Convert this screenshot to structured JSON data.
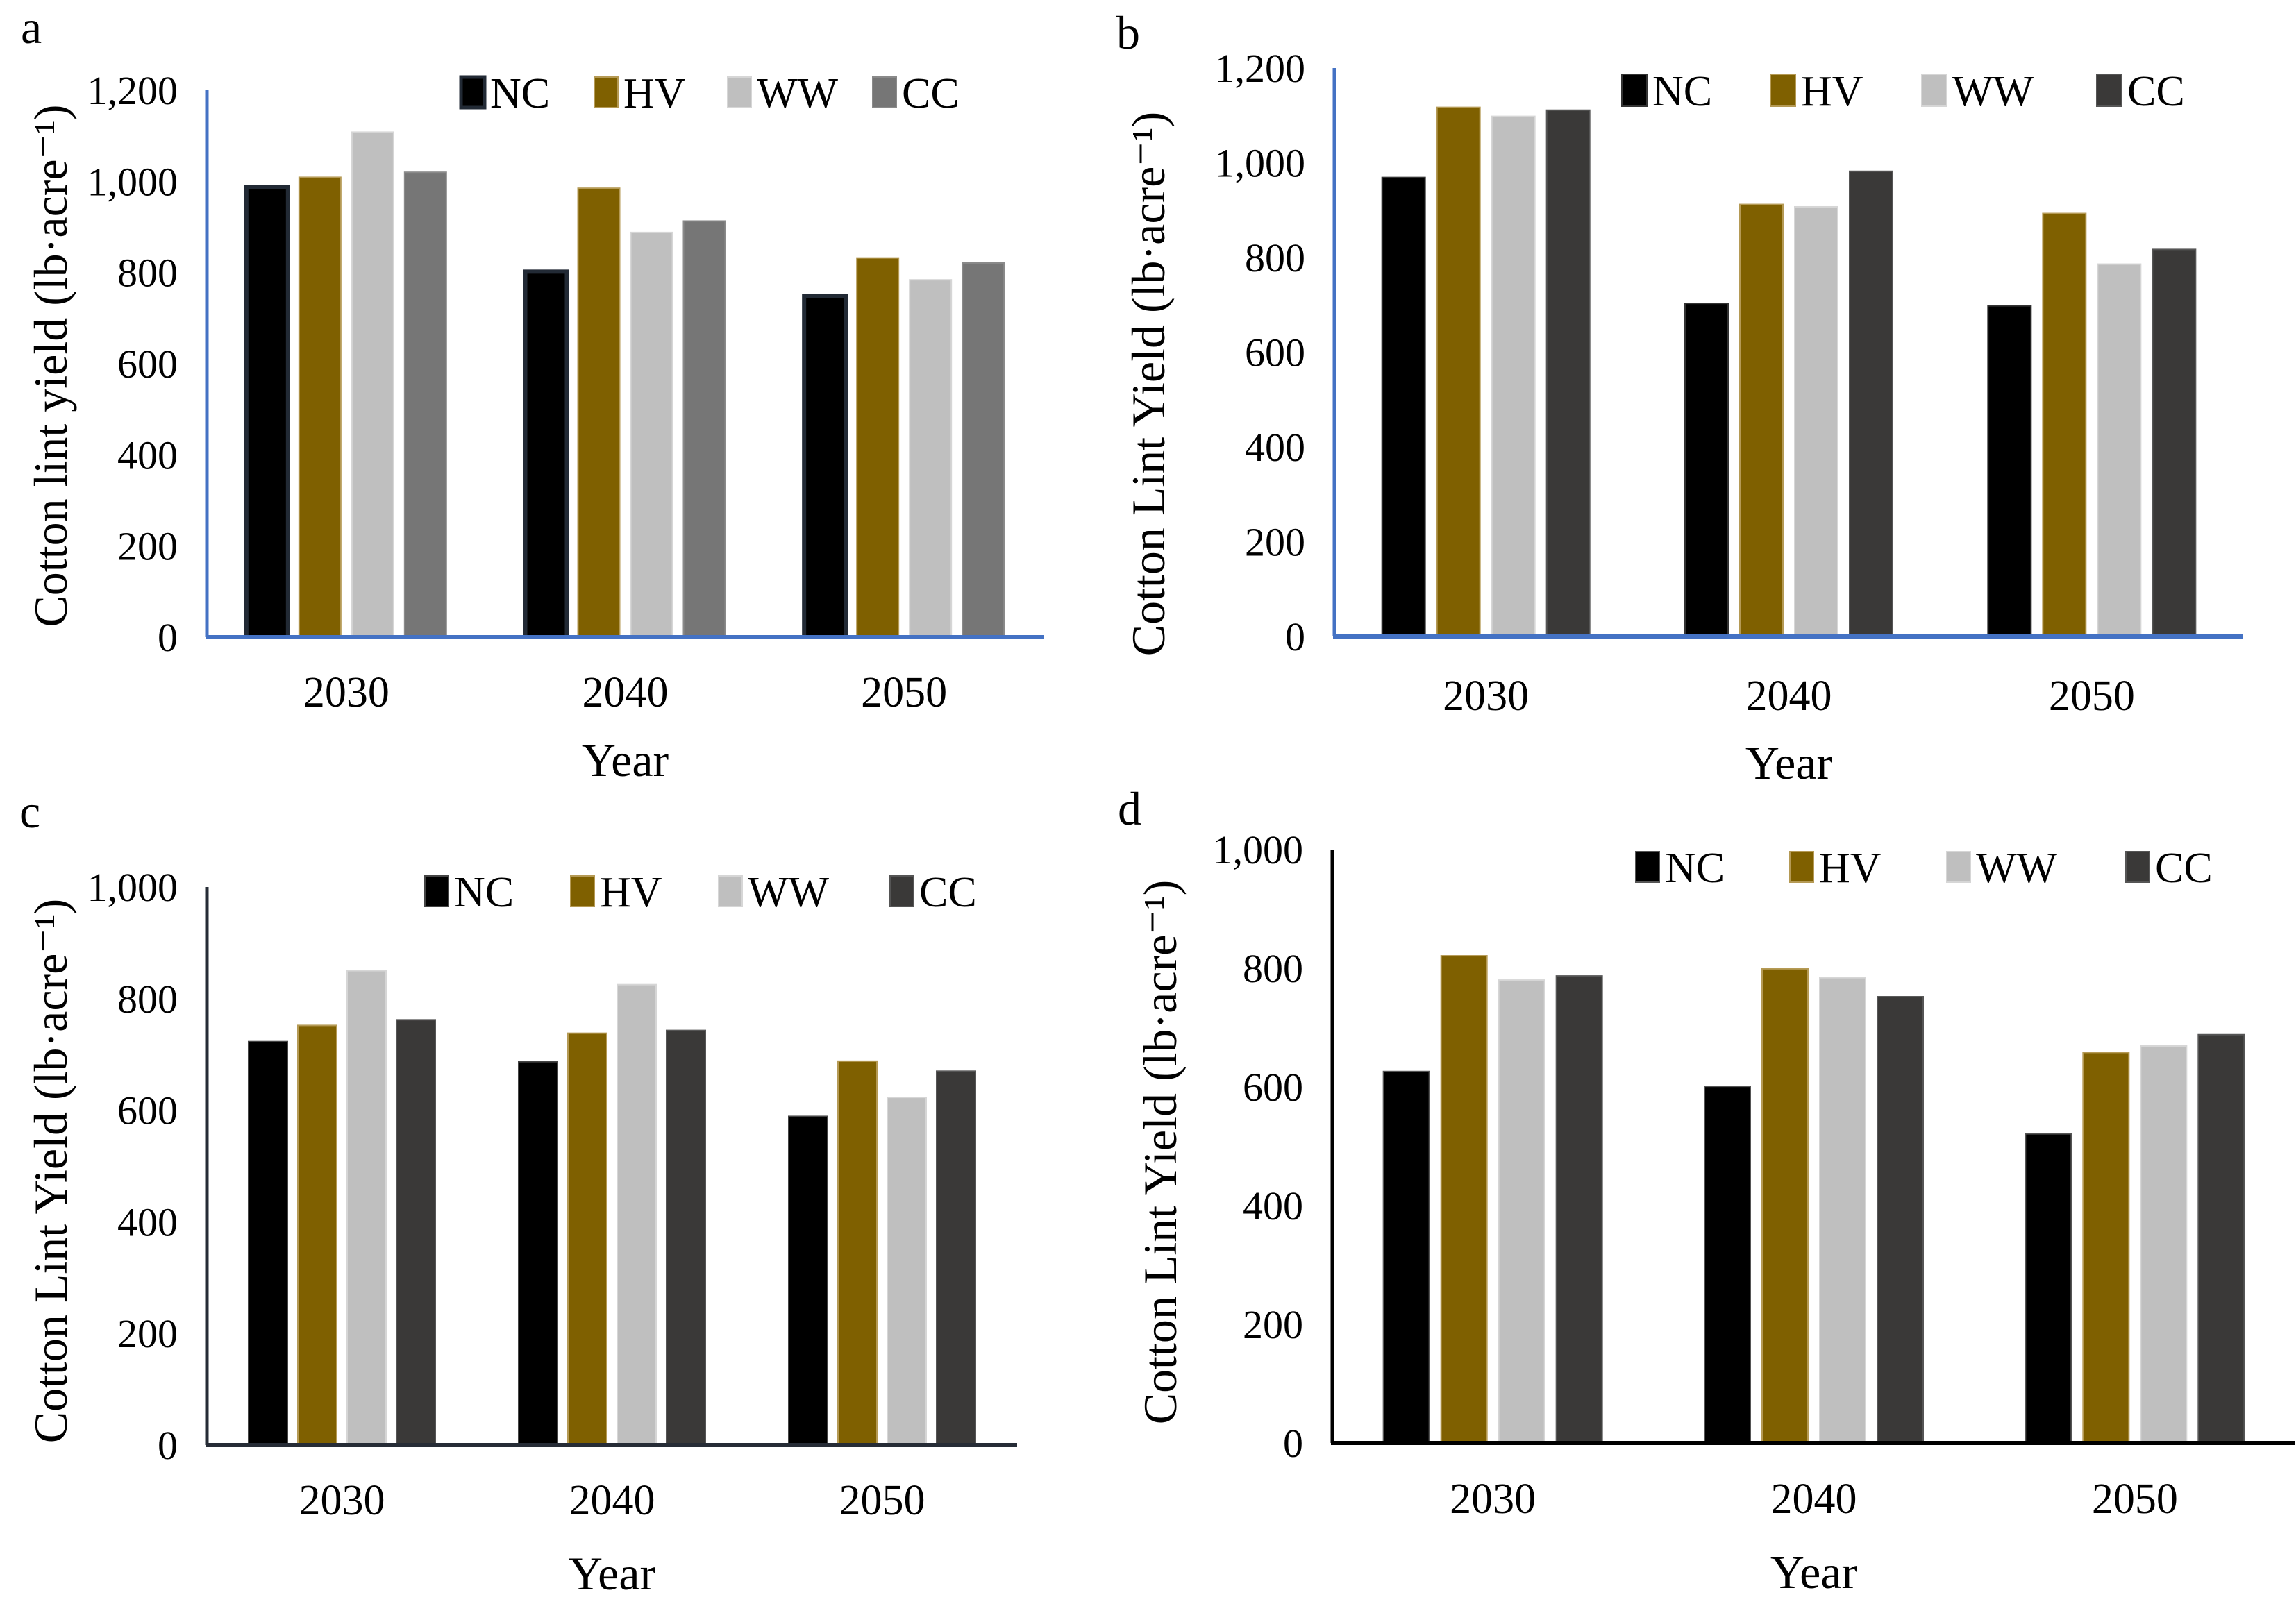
{
  "figure": {
    "panels_count": 4
  },
  "chart_data": [
    {
      "panel": "a",
      "type": "bar",
      "title": "",
      "xlabel": "Year",
      "ylabel": "Cotton lint yield (lb·acre⁻¹)",
      "ylim": [
        0,
        1200
      ],
      "yticks": [
        0,
        200,
        400,
        600,
        800,
        1000,
        1200
      ],
      "ytick_labels": [
        "0",
        "200",
        "400",
        "600",
        "800",
        "1,000",
        "1,200"
      ],
      "categories": [
        "2030",
        "2040",
        "2050"
      ],
      "legend_position": "top-right",
      "grid": false,
      "axis_color": "#4472c4",
      "series": [
        {
          "name": "NC",
          "color": "#000000",
          "edge": "#222a35",
          "values": [
            987,
            802,
            748
          ]
        },
        {
          "name": "HV",
          "color": "#7f6000",
          "edge": "#b59a55",
          "values": [
            1009,
            985,
            832
          ]
        },
        {
          "name": "WW",
          "color": "#bfbfbf",
          "edge": "#d6d6d6",
          "values": [
            1108,
            888,
            784
          ]
        },
        {
          "name": "CC",
          "color": "#767676",
          "edge": "#8a8a8a",
          "values": [
            1020,
            913,
            821
          ]
        }
      ]
    },
    {
      "panel": "b",
      "type": "bar",
      "title": "",
      "xlabel": "Year",
      "ylabel": "Cotton Lint Yield (lb·acre⁻¹)",
      "ylim": [
        0,
        1200
      ],
      "yticks": [
        0,
        200,
        400,
        600,
        800,
        1000,
        1200
      ],
      "ytick_labels": [
        "0",
        "200",
        "400",
        "600",
        "800",
        "1,000",
        "1,200"
      ],
      "categories": [
        "2030",
        "2040",
        "2050"
      ],
      "legend_position": "top-right",
      "grid": false,
      "axis_color": "#4472c4",
      "series": [
        {
          "name": "NC",
          "color": "#000000",
          "edge": "#333333",
          "values": [
            969,
            703,
            698
          ]
        },
        {
          "name": "HV",
          "color": "#7f6000",
          "edge": "#b59a55",
          "values": [
            1117,
            912,
            893
          ]
        },
        {
          "name": "WW",
          "color": "#bfbfbf",
          "edge": "#d6d6d6",
          "values": [
            1098,
            907,
            786
          ]
        },
        {
          "name": "CC",
          "color": "#3a3938",
          "edge": "#555555",
          "values": [
            1111,
            982,
            817
          ]
        }
      ]
    },
    {
      "panel": "c",
      "type": "bar",
      "title": "",
      "xlabel": "Year",
      "ylabel": "Cotton Lint Yield (lb·acre⁻¹)",
      "ylim": [
        0,
        1000
      ],
      "yticks": [
        0,
        200,
        400,
        600,
        800,
        1000
      ],
      "ytick_labels": [
        "0",
        "200",
        "400",
        "600",
        "800",
        "1,000"
      ],
      "categories": [
        "2030",
        "2040",
        "2050"
      ],
      "legend_position": "top-right",
      "grid": false,
      "axis_color": "#262c36",
      "series": [
        {
          "name": "NC",
          "color": "#000000",
          "edge": "#444444",
          "values": [
            723,
            687,
            589
          ]
        },
        {
          "name": "HV",
          "color": "#7f6000",
          "edge": "#b59a55",
          "values": [
            752,
            738,
            688
          ]
        },
        {
          "name": "WW",
          "color": "#bfbfbf",
          "edge": "#d6d6d6",
          "values": [
            850,
            825,
            623
          ]
        },
        {
          "name": "CC",
          "color": "#3a3938",
          "edge": "#555555",
          "values": [
            762,
            743,
            670
          ]
        }
      ]
    },
    {
      "panel": "d",
      "type": "bar",
      "title": "",
      "xlabel": "Year",
      "ylabel": "Cotton Lint Yield (lb·acre⁻¹)",
      "ylim": [
        0,
        1000
      ],
      "yticks": [
        0,
        200,
        400,
        600,
        800,
        1000
      ],
      "ytick_labels": [
        "0",
        "200",
        "400",
        "600",
        "800",
        "1,000"
      ],
      "categories": [
        "2030",
        "2040",
        "2050"
      ],
      "legend_position": "top-right",
      "grid": false,
      "axis_color": "#000000",
      "series": [
        {
          "name": "NC",
          "color": "#000000",
          "edge": "#555555",
          "values": [
            626,
            601,
            521
          ]
        },
        {
          "name": "HV",
          "color": "#7f6000",
          "edge": "#b59a55",
          "values": [
            821,
            799,
            658
          ]
        },
        {
          "name": "WW",
          "color": "#bfbfbf",
          "edge": "#d6d6d6",
          "values": [
            780,
            784,
            669
          ]
        },
        {
          "name": "CC",
          "color": "#3a3938",
          "edge": "#555555",
          "values": [
            787,
            752,
            688
          ]
        }
      ]
    }
  ]
}
